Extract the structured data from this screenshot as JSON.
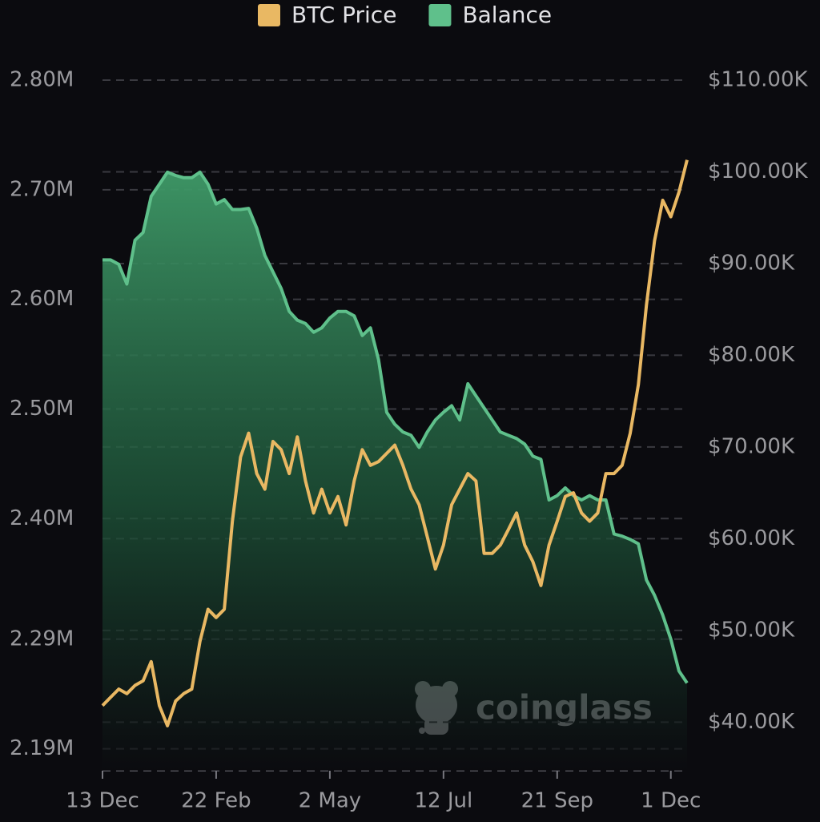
{
  "chart_data": {
    "type": "line",
    "watermark": "coinglass",
    "categories": [
      "13 Dec",
      null,
      null,
      null,
      null,
      null,
      null,
      null,
      null,
      null,
      null,
      null,
      null,
      null,
      "22 Feb",
      null,
      null,
      null,
      null,
      null,
      null,
      null,
      null,
      null,
      null,
      null,
      null,
      null,
      "2 May",
      null,
      null,
      null,
      null,
      null,
      null,
      null,
      null,
      null,
      null,
      null,
      null,
      null,
      "12 Jul",
      null,
      null,
      null,
      null,
      null,
      null,
      null,
      null,
      null,
      null,
      null,
      null,
      null,
      "21 Sep",
      null,
      null,
      null,
      null,
      null,
      null,
      null,
      null,
      null,
      null,
      null,
      null,
      null,
      "1 Dec",
      null,
      null
    ],
    "series": [
      {
        "name": "BTC Price",
        "color": "#e9b863",
        "axis": "y2",
        "values": [
          41800,
          42700,
          43600,
          43100,
          44000,
          44500,
          46600,
          41800,
          39600,
          42300,
          43100,
          43600,
          48800,
          52300,
          51400,
          52300,
          61900,
          68900,
          71500,
          67100,
          65400,
          70600,
          69700,
          67100,
          71100,
          66300,
          62800,
          65400,
          62800,
          64600,
          61500,
          66300,
          69700,
          68000,
          68400,
          69300,
          70200,
          68000,
          65400,
          63700,
          60200,
          56700,
          59300,
          63700,
          65400,
          67100,
          66300,
          58400,
          58400,
          59300,
          61000,
          62800,
          59300,
          57500,
          54900,
          59300,
          61900,
          64600,
          65000,
          62800,
          61900,
          62800,
          67100,
          67100,
          68000,
          71500,
          76800,
          85500,
          92500,
          96900,
          95100,
          97800,
          101300
        ]
      },
      {
        "name": "Balance",
        "color": "#5fc08b",
        "area": true,
        "values": [
          2636000,
          2636000,
          2632000,
          2614000,
          2654000,
          2661000,
          2694000,
          2705000,
          2716000,
          2713000,
          2711000,
          2711000,
          2716000,
          2705000,
          2687000,
          2691000,
          2682000,
          2682000,
          2683000,
          2665000,
          2640000,
          2625000,
          2610000,
          2589000,
          2581000,
          2578000,
          2570000,
          2574000,
          2583000,
          2589000,
          2589000,
          2585000,
          2567000,
          2574000,
          2545000,
          2497000,
          2486000,
          2479000,
          2476000,
          2465000,
          2479000,
          2490000,
          2497000,
          2503000,
          2490000,
          2523000,
          2512000,
          2501000,
          2490000,
          2479000,
          2476000,
          2473000,
          2468000,
          2457000,
          2454000,
          2417000,
          2421000,
          2428000,
          2421000,
          2417000,
          2421000,
          2417000,
          2417000,
          2386000,
          2384000,
          2381000,
          2377000,
          2344000,
          2330000,
          2312000,
          2290000,
          2261000,
          2250000
        ]
      }
    ],
    "ylim": [
      2170000,
      2800000
    ],
    "yticks": [
      {
        "value": 2190000,
        "label": "2.19M"
      },
      {
        "value": 2290000,
        "label": "2.29M"
      },
      {
        "value": 2400000,
        "label": "2.40M"
      },
      {
        "value": 2500000,
        "label": "2.50M"
      },
      {
        "value": 2600000,
        "label": "2.60M"
      },
      {
        "value": 2700000,
        "label": "2.70M"
      },
      {
        "value": 2800000,
        "label": "2.80M"
      }
    ],
    "y2lim": [
      34700,
      110000
    ],
    "y2ticks": [
      {
        "value": 40000,
        "label": "$40.00K"
      },
      {
        "value": 50000,
        "label": "$50.00K"
      },
      {
        "value": 60000,
        "label": "$60.00K"
      },
      {
        "value": 70000,
        "label": "$70.00K"
      },
      {
        "value": 80000,
        "label": "$80.00K"
      },
      {
        "value": 90000,
        "label": "$90.00K"
      },
      {
        "value": 100000,
        "label": "$100.00K"
      },
      {
        "value": 110000,
        "label": "$110.00K"
      }
    ],
    "grid": true,
    "legend": "top"
  }
}
